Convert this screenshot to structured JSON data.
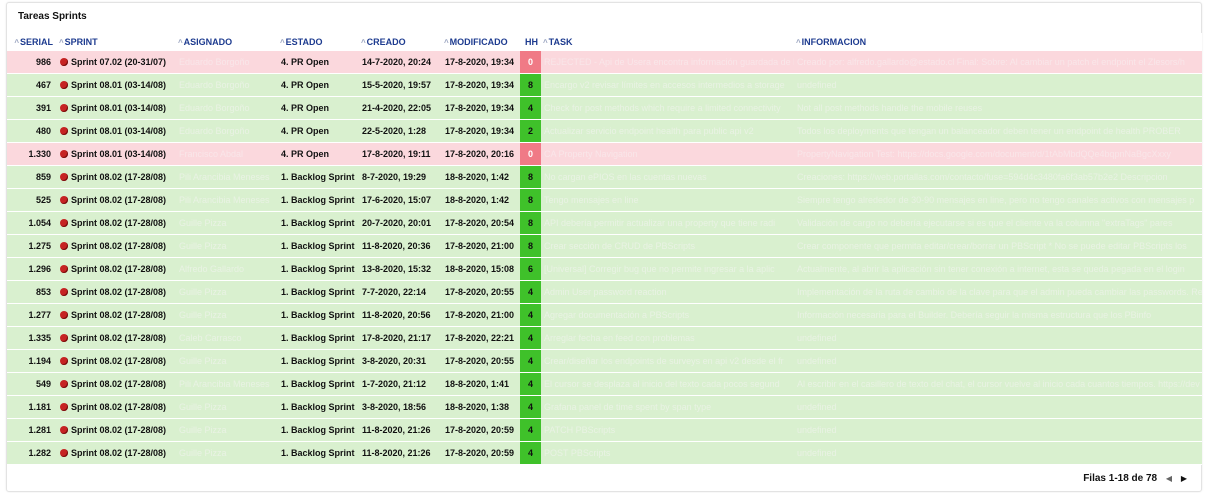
{
  "title": "Tareas Sprints",
  "columns": {
    "serial": "SERIAL",
    "sprint": "SPRINT",
    "asignado": "ASIGNADO",
    "estado": "ESTADO",
    "creado": "CREADO",
    "modificado": "MODIFICADO",
    "hh": "HH",
    "task": "TASK",
    "informacion": "INFORMACION"
  },
  "sort_icon": "sort-icon",
  "bug_icon": "bug-icon",
  "colors": {
    "row_green": "#d9f0cf",
    "row_pink": "#fbd8dd",
    "hh_green": "#3fc12a",
    "hh_red": "#f07a86",
    "header_text": "#1d3b8f"
  },
  "rows": [
    {
      "status": "pink",
      "serial": "986",
      "sprint": "Sprint 07.02 (20-31/07)",
      "asignado": "Eduardo Borgoño",
      "estado": "4. PR Open",
      "creado": "14-7-2020, 20:24",
      "modificado": "17-8-2020, 19:34",
      "hh": "0",
      "task": "REJECTED - Api de Usera encontra información guardada de la",
      "informacion": "Creado por: alfredo.gallardo@estado.cl Final: Sobre: Al cambiar un patch el endpoint el Zlesors/h"
    },
    {
      "status": "green",
      "serial": "467",
      "sprint": "Sprint 08.01 (03-14/08)",
      "asignado": "Eduardo Borgoño",
      "estado": "4. PR Open",
      "creado": "15-5-2020, 19:57",
      "modificado": "17-8-2020, 19:34",
      "hh": "8",
      "task": "Encargo v2 revisar límites en accesos intermedios a storage",
      "informacion": "undefined"
    },
    {
      "status": "green",
      "serial": "391",
      "sprint": "Sprint 08.01 (03-14/08)",
      "asignado": "Eduardo Borgoño",
      "estado": "4. PR Open",
      "creado": "21-4-2020, 22:05",
      "modificado": "17-8-2020, 19:34",
      "hh": "4",
      "task": "Check for post methods which require a limited connectivity",
      "informacion": "Not all post methods handle the mobile reuses"
    },
    {
      "status": "green",
      "serial": "480",
      "sprint": "Sprint 08.01 (03-14/08)",
      "asignado": "Eduardo Borgoño",
      "estado": "4. PR Open",
      "creado": "22-5-2020, 1:28",
      "modificado": "17-8-2020, 19:34",
      "hh": "2",
      "task": "Actualizar servicio endpoint health para public api v2",
      "informacion": "Todos los deployments que tengan un balanceador deben tener un endpoint de health PROBER"
    },
    {
      "status": "pink",
      "serial": "1.330",
      "sprint": "Sprint 08.01 (03-14/08)",
      "asignado": "Francisco Abdal",
      "estado": "4. PR Open",
      "creado": "17-8-2020, 19:11",
      "modificado": "17-8-2020, 20:16",
      "hh": "0",
      "task": "CA Property Navigation",
      "informacion": "PropertyNavigation Test: https://docs.google.com/document/d/1tAbMbdQQe4bqpnNaBgcXxxy"
    },
    {
      "status": "green",
      "serial": "859",
      "sprint": "Sprint 08.02 (17-28/08)",
      "asignado": "Pili Arancibia Meneses",
      "estado": "1. Backlog Sprint",
      "creado": "8-7-2020, 19:29",
      "modificado": "18-8-2020, 1:42",
      "hh": "8",
      "task": "No cargan ePIOS en las cuentas nuevas",
      "informacion": "Creaciones: https://web.portallas.com/contacto/fuse=594d4c3480fa6f3ab57b2e2 Descripcion"
    },
    {
      "status": "green",
      "serial": "525",
      "sprint": "Sprint 08.02 (17-28/08)",
      "asignado": "Pili Arancibia Meneses",
      "estado": "1. Backlog Sprint",
      "creado": "17-6-2020, 15:07",
      "modificado": "18-8-2020, 1:42",
      "hh": "8",
      "task": "Tengo mensajes en line",
      "informacion": "Siempre tengo alrededor de 30-90 mensajes en line, pero no tengo canales activos con mensajes p"
    },
    {
      "status": "green",
      "serial": "1.054",
      "sprint": "Sprint 08.02 (17-28/08)",
      "asignado": "Guille Pizza",
      "estado": "1. Backlog Sprint",
      "creado": "20-7-2020, 20:01",
      "modificado": "17-8-2020, 20:54",
      "hh": "8",
      "task": "API debería permitir actualizar una property que tiene radi",
      "informacion": "Validación de cargo no debería ejecutarse si es que el cliente va la columna \"extraTags\" pares"
    },
    {
      "status": "green",
      "serial": "1.275",
      "sprint": "Sprint 08.02 (17-28/08)",
      "asignado": "Guille Pizza",
      "estado": "1. Backlog Sprint",
      "creado": "11-8-2020, 20:36",
      "modificado": "17-8-2020, 21:00",
      "hh": "8",
      "task": "Crear sección de CRUD de PBScripts",
      "informacion": "Crear componente que permita editar/crear/borrar un PBScript * No se puede editar PBScripts los"
    },
    {
      "status": "green",
      "serial": "1.296",
      "sprint": "Sprint 08.02 (17-28/08)",
      "asignado": "Alfredo Gallardo",
      "estado": "1. Backlog Sprint",
      "creado": "13-8-2020, 15:32",
      "modificado": "18-8-2020, 15:08",
      "hh": "6",
      "task": "[Universal] Corregir bug que no permite ingresar a la aplic",
      "informacion": "Actualmente, al abrir la aplicación sin tener conexión a internet, esta se queda pegada en el login"
    },
    {
      "status": "green",
      "serial": "853",
      "sprint": "Sprint 08.02 (17-28/08)",
      "asignado": "Guille Pizza",
      "estado": "1. Backlog Sprint",
      "creado": "7-7-2020, 22:14",
      "modificado": "17-8-2020, 20:55",
      "hh": "4",
      "task": "Admin User password reaction",
      "informacion": "Implementación de la ruta de cambio de la clave para que el admin pueda cambiar las passwords. Reset de la clave no ma"
    },
    {
      "status": "green",
      "serial": "1.277",
      "sprint": "Sprint 08.02 (17-28/08)",
      "asignado": "Guille Pizza",
      "estado": "1. Backlog Sprint",
      "creado": "11-8-2020, 20:56",
      "modificado": "17-8-2020, 21:00",
      "hh": "4",
      "task": "Agregar documentación a PBScripts",
      "informacion": "Información necesaria para el Builder. Debería seguir la misma estructura que los PBinfo"
    },
    {
      "status": "green",
      "serial": "1.335",
      "sprint": "Sprint 08.02 (17-28/08)",
      "asignado": "Caleb Carrasco",
      "estado": "1. Backlog Sprint",
      "creado": "17-8-2020, 21:17",
      "modificado": "17-8-2020, 22:21",
      "hh": "4",
      "task": "Arreglar fecha en feed con problemas",
      "informacion": "undefined"
    },
    {
      "status": "green",
      "serial": "1.194",
      "sprint": "Sprint 08.02 (17-28/08)",
      "asignado": "Guille Pizza",
      "estado": "1. Backlog Sprint",
      "creado": "3-8-2020, 20:31",
      "modificado": "17-8-2020, 20:55",
      "hh": "4",
      "task": "Crear/diseñar los endpoints de surveys en api v2 desde el fr",
      "informacion": "undefined"
    },
    {
      "status": "green",
      "serial": "549",
      "sprint": "Sprint 08.02 (17-28/08)",
      "asignado": "Pili Arancibia Meneses",
      "estado": "1. Backlog Sprint",
      "creado": "1-7-2020, 21:12",
      "modificado": "18-8-2020, 1:41",
      "hh": "4",
      "task": "El cursor se desplaza al inicio del texto cada pocos segund",
      "informacion": "Al escribir en el casillero de texto del chat, el cursor vuelve al inicio cada cuantos tiempos. https://dev"
    },
    {
      "status": "green",
      "serial": "1.181",
      "sprint": "Sprint 08.02 (17-28/08)",
      "asignado": "Guille Pizza",
      "estado": "1. Backlog Sprint",
      "creado": "3-8-2020, 18:56",
      "modificado": "18-8-2020, 1:38",
      "hh": "4",
      "task": "Grafana panel de time spent by span type",
      "informacion": "undefined"
    },
    {
      "status": "green",
      "serial": "1.281",
      "sprint": "Sprint 08.02 (17-28/08)",
      "asignado": "Guille Pizza",
      "estado": "1. Backlog Sprint",
      "creado": "11-8-2020, 21:26",
      "modificado": "17-8-2020, 20:59",
      "hh": "4",
      "task": "PATCH PBScripts",
      "informacion": "undefined"
    },
    {
      "status": "green",
      "serial": "1.282",
      "sprint": "Sprint 08.02 (17-28/08)",
      "asignado": "Guille Pizza",
      "estado": "1. Backlog Sprint",
      "creado": "11-8-2020, 21:26",
      "modificado": "17-8-2020, 20:59",
      "hh": "4",
      "task": "POST PBScripts",
      "informacion": "undefined"
    }
  ],
  "pagination": {
    "label": "Filas 1-18 de 78",
    "prev_icon": "chevron-left-icon",
    "next_icon": "chevron-right-icon"
  }
}
